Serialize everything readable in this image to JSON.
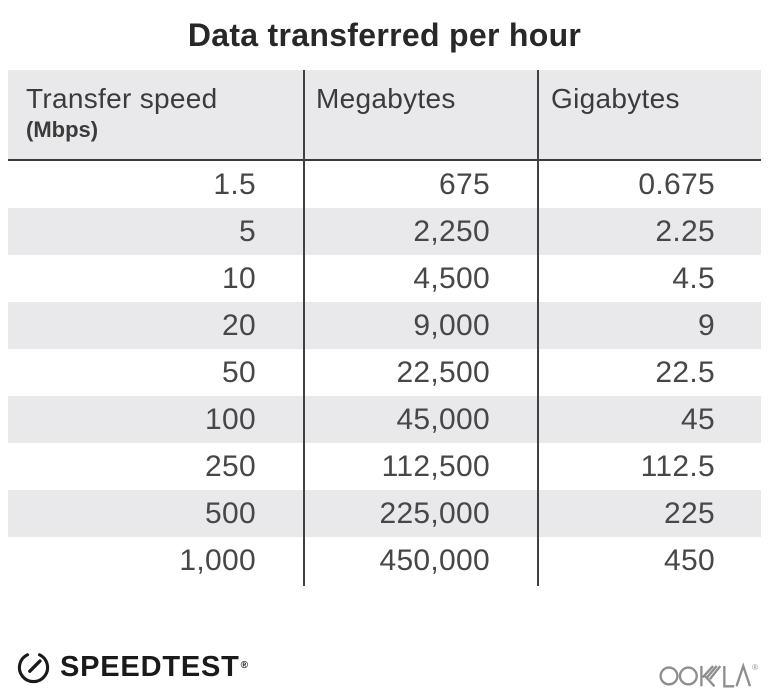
{
  "title": "Data transferred per hour",
  "table": {
    "header": {
      "col1_label": "Transfer speed",
      "col1_sublabel": "(Mbps)",
      "col2_label": "Megabytes",
      "col3_label": "Gigabytes"
    },
    "rows": [
      [
        "1.5",
        "675",
        "0.675"
      ],
      [
        "5",
        "2,250",
        "2.25"
      ],
      [
        "10",
        "4,500",
        "4.5"
      ],
      [
        "20",
        "9,000",
        "9"
      ],
      [
        "50",
        "22,500",
        "22.5"
      ],
      [
        "100",
        "45,000",
        "45"
      ],
      [
        "250",
        "112,500",
        "112.5"
      ],
      [
        "500",
        "225,000",
        "225"
      ],
      [
        "1,000",
        "450,000",
        "450"
      ]
    ]
  },
  "chart_data": {
    "type": "table",
    "title": "Data transferred per hour",
    "columns": [
      "Transfer speed (Mbps)",
      "Megabytes",
      "Gigabytes"
    ],
    "rows": [
      [
        1.5,
        675,
        0.675
      ],
      [
        5,
        2250,
        2.25
      ],
      [
        10,
        4500,
        4.5
      ],
      [
        20,
        9000,
        9
      ],
      [
        50,
        22500,
        22.5
      ],
      [
        100,
        45000,
        45
      ],
      [
        250,
        112500,
        112.5
      ],
      [
        500,
        225000,
        225
      ],
      [
        1000,
        450000,
        450
      ]
    ],
    "layout": {
      "striped_rows": "even rows shaded",
      "numeric_alignment": "right",
      "column_dividers": true
    }
  },
  "footer": {
    "speedtest": {
      "label": "SPEEDTEST",
      "registered_mark": "®"
    },
    "ookla": {
      "label": "OOKLA",
      "registered_mark": "®"
    }
  },
  "colors": {
    "stripe_bg": "#e9e8eb",
    "header_bg": "#e9e8eb",
    "divider": "#414141",
    "header_border": "#3a3a3a",
    "title_text": "#282828",
    "number_text": "#474747",
    "speedtest_black": "#1a1a1a",
    "ookla_gray": "#8e8e8e"
  }
}
